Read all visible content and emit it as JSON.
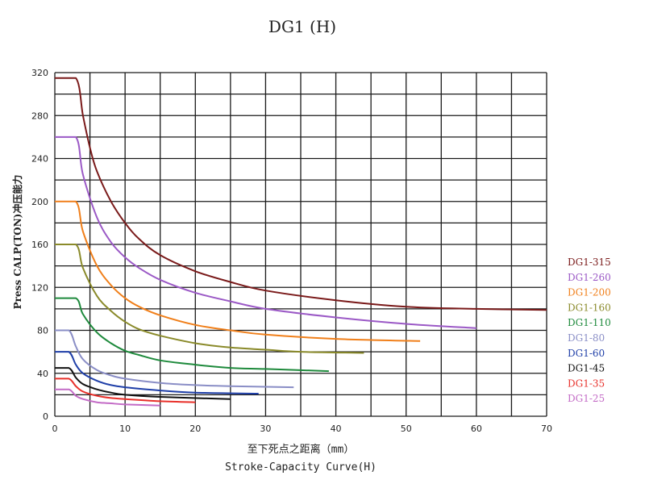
{
  "chart_data": {
    "type": "line",
    "title": "DG1 (H)",
    "xlabel_cn": "至下死点之距离（mm）",
    "xlabel": "Stroke-Capacity Curve(H)",
    "ylabel": "Press CALP(TON)冲压能力",
    "xlim": [
      0,
      70
    ],
    "ylim": [
      0,
      320
    ],
    "xticks": [
      "0",
      "10",
      "20",
      "30",
      "40",
      "50",
      "60",
      "70"
    ],
    "yticks": [
      "0",
      "40",
      "80",
      "120",
      "160",
      "200",
      "240",
      "280",
      "320"
    ],
    "grid": true,
    "legend_position": "right",
    "series": [
      {
        "name": "DG1-315",
        "color": "#7a1a1a",
        "x": [
          0,
          3,
          4,
          5,
          6,
          8,
          10,
          12,
          15,
          20,
          25,
          30,
          40,
          50,
          60,
          70
        ],
        "y": [
          315,
          315,
          280,
          250,
          228,
          200,
          180,
          165,
          150,
          135,
          125,
          117,
          108,
          102,
          100,
          99
        ]
      },
      {
        "name": "DG1-260",
        "color": "#9b59c6",
        "x": [
          0,
          3,
          4,
          6,
          8,
          10,
          12,
          15,
          20,
          25,
          30,
          40,
          50,
          60
        ],
        "y": [
          260,
          260,
          225,
          185,
          162,
          148,
          138,
          127,
          115,
          107,
          100,
          92,
          86,
          82
        ]
      },
      {
        "name": "DG1-200",
        "color": "#f07f1a",
        "x": [
          0,
          3,
          4,
          6,
          8,
          10,
          12,
          15,
          20,
          25,
          30,
          40,
          52
        ],
        "y": [
          200,
          200,
          172,
          140,
          122,
          110,
          102,
          94,
          85,
          80,
          76,
          72,
          70
        ]
      },
      {
        "name": "DG1-160",
        "color": "#8a8a2a",
        "x": [
          0,
          3,
          4,
          6,
          8,
          10,
          12,
          15,
          20,
          25,
          30,
          35,
          44
        ],
        "y": [
          160,
          160,
          138,
          112,
          98,
          88,
          81,
          75,
          68,
          64,
          62,
          60,
          59
        ]
      },
      {
        "name": "DG1-110",
        "color": "#1e8a3c",
        "x": [
          0,
          3,
          4,
          6,
          8,
          10,
          12,
          15,
          20,
          25,
          30,
          39
        ],
        "y": [
          110,
          110,
          95,
          78,
          68,
          61,
          57,
          52,
          48,
          45,
          44,
          42
        ]
      },
      {
        "name": "DG1-80",
        "color": "#8a8ec6",
        "x": [
          0,
          2,
          3,
          4,
          6,
          8,
          10,
          15,
          20,
          25,
          34
        ],
        "y": [
          80,
          80,
          65,
          53,
          43,
          38,
          35,
          31,
          29,
          28,
          27
        ]
      },
      {
        "name": "DG1-60",
        "color": "#1f3fa8",
        "x": [
          0,
          2,
          3,
          4,
          6,
          8,
          10,
          15,
          20,
          29
        ],
        "y": [
          60,
          60,
          48,
          40,
          33,
          29,
          27,
          24,
          22,
          21
        ]
      },
      {
        "name": "DG1-45",
        "color": "#111111",
        "x": [
          0,
          2,
          3,
          4,
          6,
          8,
          10,
          15,
          25
        ],
        "y": [
          45,
          45,
          36,
          30,
          25,
          22,
          20,
          18,
          16
        ]
      },
      {
        "name": "DG1-35",
        "color": "#e8302a",
        "x": [
          0,
          2,
          3,
          4,
          6,
          8,
          10,
          15,
          20
        ],
        "y": [
          35,
          35,
          28,
          23,
          19,
          17,
          16,
          14,
          13
        ]
      },
      {
        "name": "DG1-25",
        "color": "#c36bc6",
        "x": [
          0,
          2,
          3,
          4,
          6,
          8,
          10,
          15
        ],
        "y": [
          25,
          25,
          19,
          16,
          13,
          12,
          11,
          10
        ]
      }
    ]
  }
}
